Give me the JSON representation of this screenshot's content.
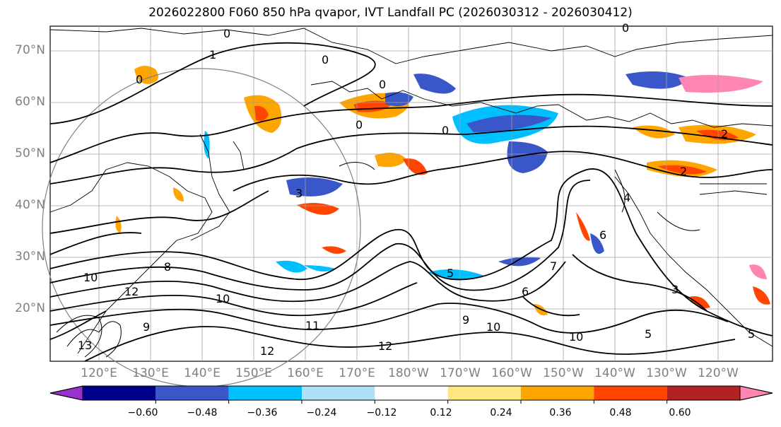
{
  "title": "2026022800 F060 850 hPa qvapor, IVT Landfall PC (2026030312 - 2026030412)",
  "lat_labels": [
    "70°N",
    "60°N",
    "50°N",
    "40°N",
    "30°N",
    "20°N"
  ],
  "lon_labels": [
    "120°E",
    "130°E",
    "140°E",
    "150°E",
    "160°E",
    "170°E",
    "180°W",
    "170°W",
    "160°W",
    "150°W",
    "140°W",
    "130°W",
    "120°W"
  ],
  "colorbar": {
    "ticks": [
      "−0.60",
      "−0.48",
      "−0.36",
      "−0.24",
      "−0.12",
      "0.12",
      "0.24",
      "0.36",
      "0.48",
      "0.60"
    ],
    "colors": [
      "#9932cc",
      "#00008b",
      "#3a57c9",
      "#00bfff",
      "#aee0f8",
      "#ffffff",
      "#ffe680",
      "#ffa500",
      "#ff4500",
      "#b22222",
      "#ff85b3"
    ]
  },
  "contour_labels": [
    "0",
    "1",
    "0",
    "0",
    "0",
    "0",
    "0",
    "0",
    "2",
    "2",
    "3",
    "4",
    "5",
    "6",
    "9",
    "10",
    "10",
    "10",
    "11",
    "12",
    "12",
    "13",
    "12",
    "10",
    "9",
    "8",
    "7",
    "3",
    "5",
    "6",
    "5"
  ],
  "colors": {
    "coast": "#000000",
    "grid": "#a0a0a0",
    "circle": "#808080",
    "contour": "#000000"
  }
}
